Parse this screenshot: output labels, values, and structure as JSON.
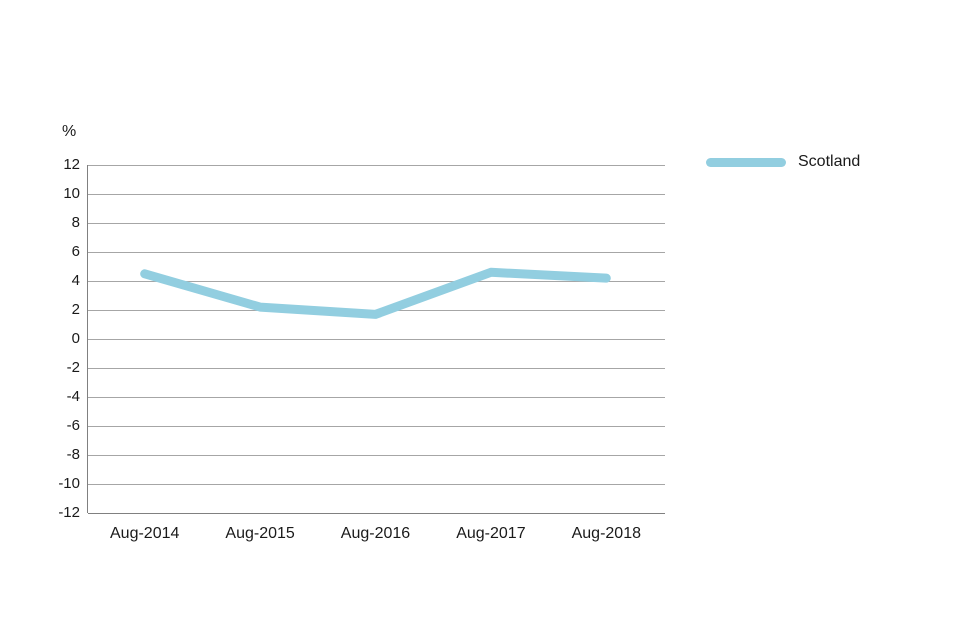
{
  "chart_data": {
    "type": "line",
    "categories": [
      "Aug-2014",
      "Aug-2015",
      "Aug-2016",
      "Aug-2017",
      "Aug-2018"
    ],
    "series": [
      {
        "name": "Scotland",
        "values": [
          4.5,
          2.2,
          1.7,
          4.6,
          4.2
        ],
        "color": "#92CEE0"
      }
    ],
    "title": "",
    "xlabel": "",
    "ylabel": "%",
    "ylim": [
      -12,
      12
    ],
    "ytick_step": 2,
    "ytick_labels": [
      "12",
      "10",
      "8",
      "6",
      "4",
      "2",
      "0",
      "-2",
      "-4",
      "-6",
      "-8",
      "-10",
      "-12"
    ],
    "grid": "horizontal",
    "gridline_color": "#a6a6a6",
    "axis_line_color": "#808080",
    "legend_position": "right"
  },
  "legend": {
    "label": "Scotland",
    "swatch_color": "#92CEE0"
  },
  "axis": {
    "unit_label": "%"
  }
}
